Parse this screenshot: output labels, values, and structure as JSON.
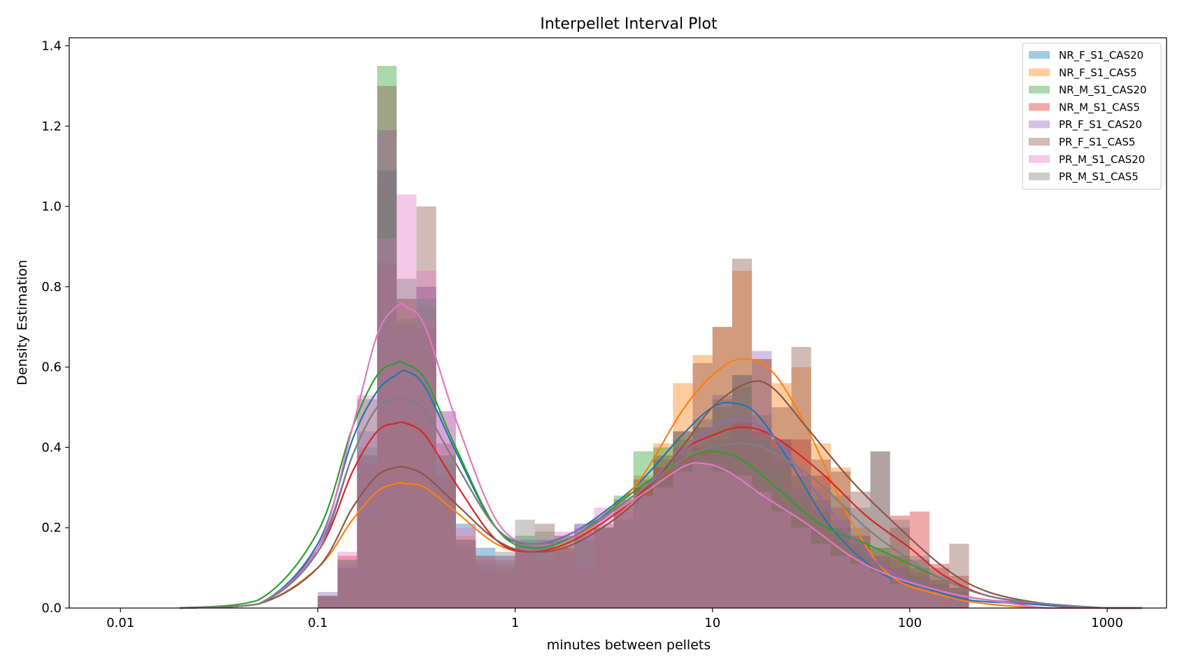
{
  "chart_data": {
    "type": "histogram-kde",
    "title": "Interpellet Interval Plot",
    "xlabel": "minutes between pellets",
    "ylabel": "Density Estimation",
    "x_scale": "log",
    "xlim": [
      0.0055,
      2000
    ],
    "ylim": [
      0,
      1.42
    ],
    "x_ticks": [
      0.01,
      0.1,
      1,
      10,
      100,
      1000
    ],
    "x_tick_labels": [
      "0.01",
      "0.1",
      "1",
      "10",
      "100",
      "1000"
    ],
    "y_ticks": [
      0,
      0.2,
      0.4,
      0.6,
      0.8,
      1.0,
      1.2,
      1.4
    ],
    "y_tick_labels": [
      "0.0",
      "0.2",
      "0.4",
      "0.6",
      "0.8",
      "1.0",
      "1.2",
      "1.4"
    ],
    "legend_position": "top-right",
    "bin_edges_minutes": [
      0.1,
      0.126,
      0.158,
      0.2,
      0.251,
      0.316,
      0.398,
      0.501,
      0.631,
      0.794,
      1.0,
      1.259,
      1.585,
      1.995,
      2.512,
      3.162,
      3.981,
      5.012,
      6.31,
      7.943,
      10.0,
      12.589,
      15.849,
      19.953,
      25.119,
      31.623,
      39.811,
      50.119,
      63.096,
      79.433,
      100.0,
      125.893,
      158.489,
      199.526
    ],
    "series": [
      {
        "name": "NR_F_S1_CAS20",
        "color": "#1f77b4",
        "hist": [
          0.03,
          0.1,
          0.38,
          1.09,
          0.71,
          0.8,
          0.36,
          0.21,
          0.15,
          0.13,
          0.17,
          0.17,
          0.15,
          0.21,
          0.19,
          0.25,
          0.3,
          0.37,
          0.44,
          0.47,
          0.52,
          0.55,
          0.48,
          0.42,
          0.33,
          0.27,
          0.2,
          0.16,
          0.12,
          0.1,
          0.08,
          0.06,
          0.04
        ],
        "kde_x": [
          0.02,
          0.05,
          0.1,
          0.15,
          0.2,
          0.25,
          0.28,
          0.35,
          0.5,
          0.8,
          1.2,
          2,
          4,
          7,
          10,
          13,
          17,
          25,
          40,
          70,
          120,
          200,
          400,
          800,
          1500
        ],
        "kde_y": [
          0.0,
          0.01,
          0.16,
          0.42,
          0.54,
          0.58,
          0.59,
          0.55,
          0.39,
          0.2,
          0.16,
          0.19,
          0.3,
          0.43,
          0.5,
          0.51,
          0.48,
          0.36,
          0.2,
          0.09,
          0.05,
          0.02,
          0.01,
          0.0,
          0.0
        ]
      },
      {
        "name": "NR_F_S1_CAS5",
        "color": "#ff7f0e",
        "hist": [
          0.02,
          0.07,
          0.22,
          0.48,
          0.47,
          0.44,
          0.3,
          0.18,
          0.12,
          0.11,
          0.14,
          0.15,
          0.15,
          0.17,
          0.2,
          0.26,
          0.33,
          0.41,
          0.56,
          0.63,
          0.7,
          0.84,
          0.62,
          0.56,
          0.6,
          0.41,
          0.35,
          0.2,
          0.15,
          0.12,
          0.09,
          0.07,
          0.05
        ],
        "kde_x": [
          0.02,
          0.05,
          0.1,
          0.15,
          0.2,
          0.25,
          0.28,
          0.35,
          0.5,
          0.8,
          1.2,
          2,
          4,
          7,
          10,
          14,
          20,
          30,
          50,
          80,
          150,
          250,
          500,
          1000,
          1500
        ],
        "kde_y": [
          0.0,
          0.01,
          0.1,
          0.22,
          0.29,
          0.31,
          0.31,
          0.3,
          0.24,
          0.16,
          0.14,
          0.17,
          0.3,
          0.49,
          0.58,
          0.62,
          0.59,
          0.45,
          0.22,
          0.08,
          0.03,
          0.01,
          0.0,
          0.0,
          0.0
        ]
      },
      {
        "name": "NR_M_S1_CAS20",
        "color": "#2ca02c",
        "hist": [
          0.03,
          0.12,
          0.4,
          1.35,
          0.72,
          0.75,
          0.38,
          0.16,
          0.11,
          0.1,
          0.18,
          0.15,
          0.14,
          0.18,
          0.2,
          0.28,
          0.39,
          0.4,
          0.42,
          0.45,
          0.5,
          0.58,
          0.42,
          0.36,
          0.28,
          0.24,
          0.2,
          0.16,
          0.15,
          0.13,
          0.1,
          0.07,
          0.05
        ],
        "kde_x": [
          0.02,
          0.05,
          0.1,
          0.15,
          0.2,
          0.25,
          0.27,
          0.35,
          0.5,
          0.8,
          1.2,
          2,
          4,
          7,
          10,
          14,
          20,
          35,
          60,
          100,
          150,
          250,
          500,
          1000,
          1500
        ],
        "kde_y": [
          0.0,
          0.02,
          0.19,
          0.45,
          0.58,
          0.61,
          0.61,
          0.57,
          0.4,
          0.2,
          0.15,
          0.18,
          0.29,
          0.37,
          0.39,
          0.37,
          0.31,
          0.21,
          0.16,
          0.11,
          0.07,
          0.03,
          0.01,
          0.0,
          0.0
        ]
      },
      {
        "name": "NR_M_S1_CAS5",
        "color": "#d62728",
        "hist": [
          0.03,
          0.13,
          0.36,
          0.86,
          0.77,
          0.7,
          0.33,
          0.17,
          0.09,
          0.09,
          0.14,
          0.12,
          0.15,
          0.1,
          0.2,
          0.22,
          0.3,
          0.35,
          0.38,
          0.4,
          0.42,
          0.46,
          0.44,
          0.42,
          0.42,
          0.33,
          0.25,
          0.18,
          0.13,
          0.23,
          0.24,
          0.11,
          0.08
        ],
        "kde_x": [
          0.02,
          0.05,
          0.1,
          0.15,
          0.2,
          0.25,
          0.28,
          0.35,
          0.5,
          0.8,
          1.2,
          2,
          4,
          7,
          10,
          14,
          20,
          35,
          60,
          100,
          150,
          250,
          500,
          1000,
          1500
        ],
        "kde_y": [
          0.0,
          0.01,
          0.14,
          0.34,
          0.44,
          0.46,
          0.46,
          0.43,
          0.31,
          0.17,
          0.14,
          0.17,
          0.27,
          0.39,
          0.43,
          0.45,
          0.43,
          0.34,
          0.23,
          0.15,
          0.08,
          0.03,
          0.01,
          0.0,
          0.0
        ]
      },
      {
        "name": "PR_F_S1_CAS20",
        "color": "#9467bd",
        "hist": [
          0.04,
          0.11,
          0.44,
          1.19,
          0.7,
          0.8,
          0.49,
          0.17,
          0.12,
          0.11,
          0.16,
          0.16,
          0.13,
          0.2,
          0.2,
          0.24,
          0.28,
          0.33,
          0.4,
          0.45,
          0.53,
          0.58,
          0.64,
          0.4,
          0.3,
          0.25,
          0.22,
          0.18,
          0.13,
          0.1,
          0.08,
          0.06,
          0.05
        ],
        "kde_x": [
          0.02,
          0.05,
          0.1,
          0.15,
          0.2,
          0.25,
          0.28,
          0.35,
          0.5,
          0.8,
          1.2,
          2,
          4,
          7,
          10,
          14,
          20,
          30,
          50,
          80,
          150,
          250,
          500,
          1000,
          1500
        ],
        "kde_y": [
          0.0,
          0.01,
          0.15,
          0.38,
          0.5,
          0.52,
          0.52,
          0.49,
          0.36,
          0.2,
          0.16,
          0.19,
          0.28,
          0.39,
          0.45,
          0.47,
          0.43,
          0.32,
          0.18,
          0.09,
          0.04,
          0.02,
          0.01,
          0.0,
          0.0
        ]
      },
      {
        "name": "PR_F_S1_CAS5",
        "color": "#8c564b",
        "hist": [
          0.03,
          0.1,
          0.38,
          1.3,
          0.77,
          1.0,
          0.41,
          0.15,
          0.13,
          0.12,
          0.16,
          0.21,
          0.18,
          0.19,
          0.21,
          0.27,
          0.32,
          0.38,
          0.44,
          0.61,
          0.7,
          0.87,
          0.62,
          0.5,
          0.65,
          0.37,
          0.34,
          0.29,
          0.39,
          0.2,
          0.12,
          0.1,
          0.16
        ],
        "kde_x": [
          0.02,
          0.05,
          0.1,
          0.15,
          0.2,
          0.25,
          0.28,
          0.35,
          0.5,
          0.8,
          1.2,
          2,
          4,
          7,
          10,
          15,
          20,
          30,
          50,
          80,
          150,
          250,
          500,
          1000,
          1500
        ],
        "kde_y": [
          0.0,
          0.01,
          0.1,
          0.25,
          0.33,
          0.35,
          0.35,
          0.33,
          0.26,
          0.17,
          0.14,
          0.16,
          0.26,
          0.4,
          0.5,
          0.56,
          0.55,
          0.45,
          0.32,
          0.22,
          0.1,
          0.04,
          0.01,
          0.0,
          0.0
        ]
      },
      {
        "name": "PR_M_S1_CAS20",
        "color": "#e377c2",
        "hist": [
          0.03,
          0.14,
          0.53,
          0.92,
          1.03,
          0.84,
          0.49,
          0.2,
          0.13,
          0.13,
          0.16,
          0.16,
          0.19,
          0.21,
          0.25,
          0.27,
          0.28,
          0.3,
          0.34,
          0.36,
          0.34,
          0.33,
          0.29,
          0.24,
          0.2,
          0.16,
          0.13,
          0.11,
          0.09,
          0.06,
          0.05,
          0.04,
          0.02
        ],
        "kde_x": [
          0.02,
          0.05,
          0.1,
          0.15,
          0.2,
          0.25,
          0.28,
          0.35,
          0.5,
          0.8,
          1.2,
          2,
          4,
          7,
          9,
          12,
          18,
          30,
          50,
          80,
          150,
          250,
          500,
          1000,
          1500
        ],
        "kde_y": [
          0.0,
          0.01,
          0.15,
          0.45,
          0.68,
          0.75,
          0.75,
          0.7,
          0.47,
          0.22,
          0.16,
          0.18,
          0.27,
          0.35,
          0.36,
          0.34,
          0.28,
          0.21,
          0.13,
          0.08,
          0.04,
          0.02,
          0.0,
          0.0,
          0.0
        ]
      },
      {
        "name": "PR_M_S1_CAS5",
        "color": "#7f7f7f",
        "hist": [
          0.03,
          0.12,
          0.52,
          1.05,
          0.82,
          0.77,
          0.38,
          0.17,
          0.13,
          0.14,
          0.22,
          0.19,
          0.18,
          0.17,
          0.2,
          0.22,
          0.28,
          0.32,
          0.36,
          0.38,
          0.42,
          0.45,
          0.43,
          0.4,
          0.33,
          0.3,
          0.28,
          0.25,
          0.39,
          0.22,
          0.13,
          0.08,
          0.05
        ],
        "kde_x": [
          0.02,
          0.05,
          0.1,
          0.15,
          0.2,
          0.25,
          0.28,
          0.35,
          0.5,
          0.8,
          1.2,
          2,
          4,
          7,
          10,
          14,
          20,
          35,
          60,
          100,
          150,
          250,
          500,
          1000,
          1500
        ],
        "kde_y": [
          0.0,
          0.01,
          0.14,
          0.38,
          0.5,
          0.52,
          0.52,
          0.49,
          0.36,
          0.2,
          0.16,
          0.18,
          0.28,
          0.37,
          0.4,
          0.41,
          0.39,
          0.31,
          0.2,
          0.12,
          0.07,
          0.03,
          0.01,
          0.0,
          0.0
        ]
      }
    ]
  }
}
